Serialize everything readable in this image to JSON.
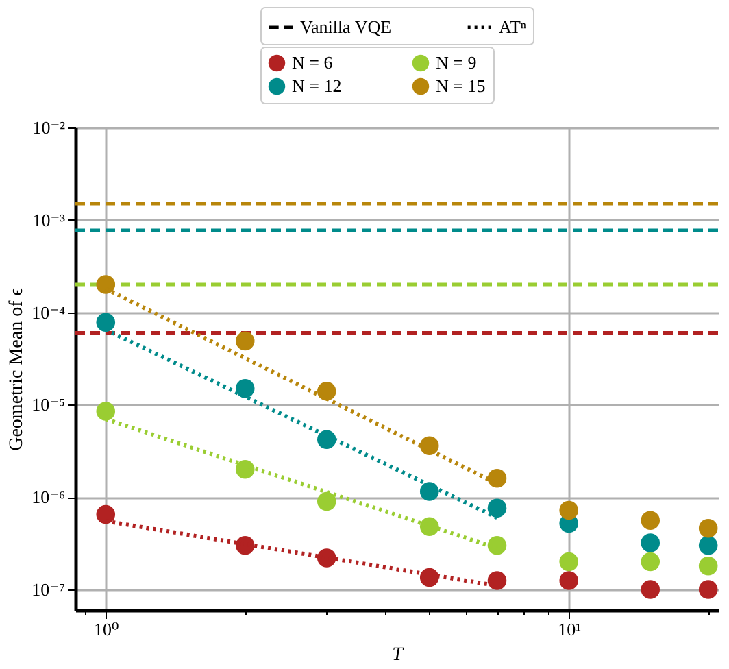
{
  "chart_data": {
    "type": "scatter",
    "xlabel": "T",
    "ylabel": "Geometric Mean of ϵ",
    "log": "xy",
    "grid": true,
    "legend": "top",
    "marker": "circle",
    "annotations": [
      "Vanilla VQE",
      "ATⁿ"
    ],
    "xlim": [
      0.86,
      21
    ],
    "xticks": [
      {
        "value": 0.9,
        "label": null
      },
      {
        "value": 1,
        "label": "10⁰"
      },
      {
        "value": 2,
        "label": null
      },
      {
        "value": 3,
        "label": null
      },
      {
        "value": 4,
        "label": null
      },
      {
        "value": 5,
        "label": null
      },
      {
        "value": 6,
        "label": null
      },
      {
        "value": 7,
        "label": null
      },
      {
        "value": 8,
        "label": null
      },
      {
        "value": 9,
        "label": null
      },
      {
        "value": 10,
        "label": "10¹"
      },
      {
        "value": 20,
        "label": null
      }
    ],
    "ylim": [
      6e-08,
      0.01
    ],
    "yticks": [
      {
        "value": 1e-07,
        "label": "10⁻⁷"
      },
      {
        "value": 1e-06,
        "label": "10⁻⁶"
      },
      {
        "value": 1e-05,
        "label": "10⁻⁵"
      },
      {
        "value": 0.0001,
        "label": "10⁻⁴"
      },
      {
        "value": 0.001,
        "label": "10⁻³"
      },
      {
        "value": 0.01,
        "label": "10⁻²"
      }
    ],
    "x": [
      1,
      2,
      3,
      5,
      7,
      10,
      15,
      20
    ],
    "series": [
      {
        "name": "N = 6",
        "color": "#b22222",
        "values": [
          6.5e-07,
          3e-07,
          2.2e-07,
          1.35e-07,
          1.25e-07,
          1.25e-07,
          1e-07,
          1e-07
        ]
      },
      {
        "name": "N = 9",
        "color": "#9acd32",
        "values": [
          8.5e-06,
          2e-06,
          9e-07,
          4.8e-07,
          3e-07,
          2e-07,
          2e-07,
          1.8e-07
        ]
      },
      {
        "name": "N = 12",
        "color": "#008b8b",
        "values": [
          7.8e-05,
          1.5e-05,
          4.2e-06,
          1.15e-06,
          7.6e-07,
          5.2e-07,
          3.2e-07,
          3e-07
        ]
      },
      {
        "name": "N = 15",
        "color": "#b8860b",
        "values": [
          0.0002,
          4.9e-05,
          1.4e-05,
          3.6e-06,
          1.6e-06,
          7.2e-07,
          5.6e-07,
          4.6e-07
        ]
      },
      {
        "type": "line",
        "line_style": "dotted",
        "marker": "none",
        "color": "#b22222",
        "values": [
          5.5e-07,
          null,
          null,
          null,
          1.1e-07,
          null,
          null,
          null
        ]
      },
      {
        "type": "line",
        "line_style": "dotted",
        "marker": "none",
        "color": "#9acd32",
        "values": [
          7e-06,
          null,
          null,
          null,
          2.8e-07,
          null,
          null,
          null
        ]
      },
      {
        "type": "line",
        "line_style": "dotted",
        "marker": "none",
        "color": "#008b8b",
        "values": [
          6.5e-05,
          null,
          null,
          null,
          6e-07,
          null,
          null,
          null
        ]
      },
      {
        "type": "line",
        "line_style": "dotted",
        "marker": "none",
        "color": "#b8860b",
        "values": [
          0.00018,
          null,
          null,
          null,
          1.4e-06,
          null,
          null,
          null
        ]
      }
    ],
    "ref_lines": [
      {
        "axis": "y",
        "value": 6e-05,
        "color": "#b22222",
        "line_style": "dashed"
      },
      {
        "axis": "y",
        "value": 0.0002,
        "color": "#9acd32",
        "line_style": "dashed"
      },
      {
        "axis": "y",
        "value": 0.00077,
        "color": "#008b8b",
        "line_style": "dashed"
      },
      {
        "axis": "y",
        "value": 0.0015,
        "color": "#b8860b",
        "line_style": "dashed"
      }
    ]
  }
}
